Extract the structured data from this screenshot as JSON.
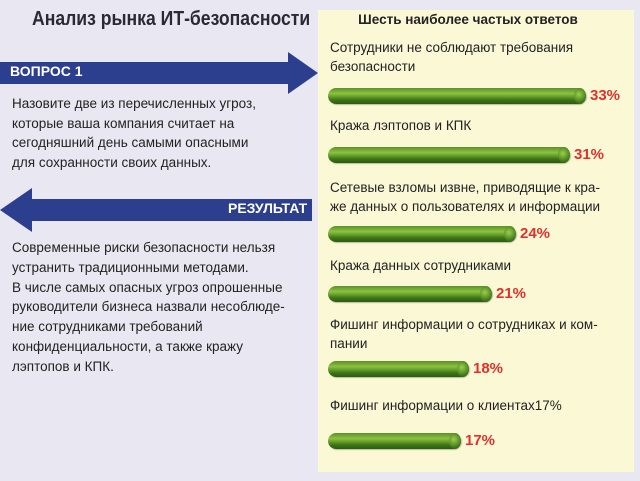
{
  "title": "Анализ рынка ИТ-безопасности",
  "question": {
    "label": "ВОПРОС 1",
    "text": "Назовите две из перечисленных угроз,\nкоторые ваша компания считает на\nсегодняшний день самыми опасными\n для сохранности своих данных."
  },
  "result": {
    "label": "РЕЗУЛЬТАТ",
    "text": "Современные риски безопасности нельзя\nустранить традиционными методами.\nВ числе самых опасных угроз опрошенные\nруководители бизнеса назвали несоблюде-\nние сотрудниками требований\nконфиденциальности, а также кражу\nлэптопов и КПК."
  },
  "colors": {
    "arrow": "#2c3f8f",
    "panel": "#fbf8d6",
    "bar": "#4a8a20",
    "value": "#e0312a",
    "background": "#e9e8f2"
  },
  "chart_data": {
    "type": "bar",
    "title": "Шесть наиболее частых ответов",
    "categories": [
      "Сотрудники не соблюдают требования\nбезопасности",
      "Кража лэптопов и КПК",
      "Сетевые взломы извне, приводящие к кра-\nже данных о пользователях и информации",
      "Кража данных сотрудниками",
      "Фишинг информации о сотрудниках и ком-\nпании",
      "Фишинг информации о клиентах17%"
    ],
    "values": [
      33,
      31,
      24,
      21,
      18,
      17
    ],
    "value_labels": [
      "33%",
      "31%",
      "24%",
      "21%",
      "18%",
      "17%"
    ],
    "unit": "%",
    "orientation": "horizontal",
    "grid": false
  }
}
